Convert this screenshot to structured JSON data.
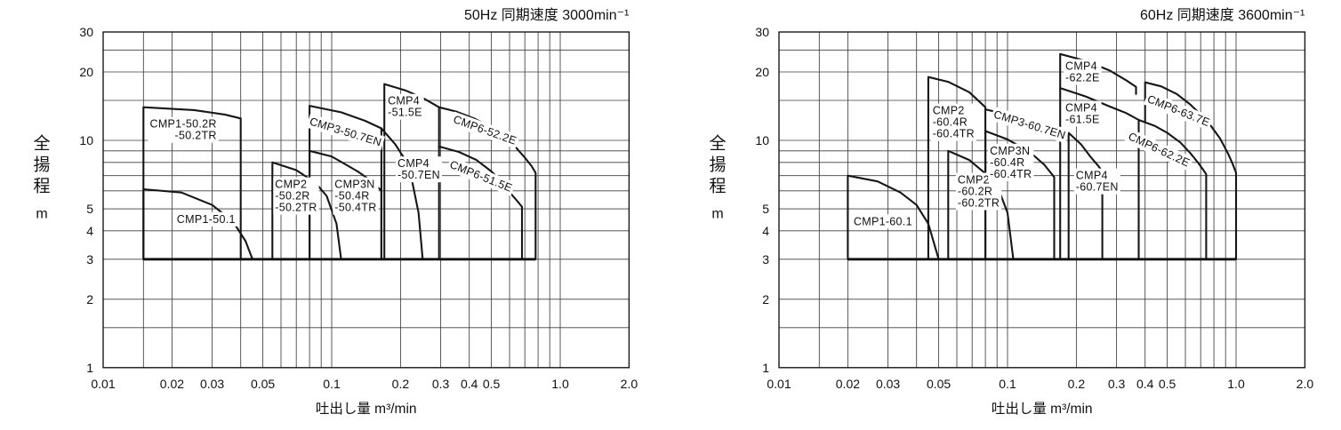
{
  "page": {
    "background": "#ffffff"
  },
  "colors": {
    "grid": "#3d3d3d",
    "border": "#1a1a1a",
    "region_line": "#161616",
    "bottom_line": "#111111",
    "text": "#111111",
    "label_bg": "#ffffff"
  },
  "chart_data": [
    {
      "type": "area",
      "id": "50hz",
      "title": "50Hz 同期速度 3000min⁻¹",
      "xlabel": "吐出し量  m³/min",
      "ylabel": "全揚程",
      "ylabel_unit": "m",
      "xlim": [
        0.01,
        2.0
      ],
      "ylim": [
        1,
        30
      ],
      "x_ticks": [
        {
          "v": 0.01,
          "t": "0.01"
        },
        {
          "v": 0.02,
          "t": "0.02"
        },
        {
          "v": 0.03,
          "t": "0.03"
        },
        {
          "v": 0.05,
          "t": "0.05"
        },
        {
          "v": 0.1,
          "t": "0.1"
        },
        {
          "v": 0.2,
          "t": "0.2"
        },
        {
          "v": 0.3,
          "t": "0.3"
        },
        {
          "v": 0.4,
          "t": "0.4"
        },
        {
          "v": 0.5,
          "t": "0.5"
        },
        {
          "v": 1.0,
          "t": "1.0"
        },
        {
          "v": 2.0,
          "t": "2.0"
        }
      ],
      "y_ticks": [
        {
          "v": 30,
          "t": "30"
        },
        {
          "v": 20,
          "t": "20"
        },
        {
          "v": 10,
          "t": "10"
        },
        {
          "v": 5,
          "t": "5"
        },
        {
          "v": 4,
          "t": "4"
        },
        {
          "v": 3,
          "t": "3"
        },
        {
          "v": 2,
          "t": "2"
        },
        {
          "v": 1,
          "t": "1"
        }
      ],
      "x_grid": [
        0.01,
        0.015,
        0.02,
        0.03,
        0.04,
        0.05,
        0.06,
        0.07,
        0.08,
        0.09,
        0.1,
        0.2,
        0.3,
        0.4,
        0.5,
        0.6,
        0.7,
        0.8,
        0.9,
        1.0,
        2.0
      ],
      "y_grid": [
        1,
        1.5,
        2,
        3,
        4,
        5,
        6,
        7,
        8,
        9,
        10,
        15,
        20,
        25,
        30
      ],
      "bottom_boundary": {
        "head_m": 3,
        "from": 0.015,
        "to": 0.78
      },
      "regions": [
        {
          "model": "CMP1-50.1",
          "points": [
            [
              0.015,
              3
            ],
            [
              0.015,
              6.1
            ],
            [
              0.022,
              5.9
            ],
            [
              0.03,
              5.2
            ],
            [
              0.037,
              4.4
            ],
            [
              0.042,
              3.6
            ],
            [
              0.045,
              3
            ]
          ]
        },
        {
          "model": "CMP1-50.2R/-50.2TR",
          "points": [
            [
              0.015,
              3
            ],
            [
              0.015,
              14
            ],
            [
              0.025,
              13.6
            ],
            [
              0.034,
              13.0
            ],
            [
              0.04,
              12.5
            ],
            [
              0.04,
              3
            ]
          ]
        },
        {
          "model": "CMP2-50.2R/-50.2TR",
          "points": [
            [
              0.055,
              3
            ],
            [
              0.055,
              8
            ],
            [
              0.07,
              7.4
            ],
            [
              0.085,
              6.5
            ],
            [
              0.095,
              5.7
            ],
            [
              0.105,
              4.3
            ],
            [
              0.11,
              3
            ]
          ]
        },
        {
          "model": "CMP3N-50.4R/-50.4TR",
          "points": [
            [
              0.08,
              3
            ],
            [
              0.08,
              9
            ],
            [
              0.1,
              8.5
            ],
            [
              0.13,
              7.3
            ],
            [
              0.15,
              6.6
            ],
            [
              0.165,
              6.0
            ],
            [
              0.165,
              3
            ]
          ]
        },
        {
          "model": "CMP3-50.7EN",
          "points": [
            [
              0.08,
              3
            ],
            [
              0.08,
              14.2
            ],
            [
              0.11,
              13.3
            ],
            [
              0.14,
              12.2
            ],
            [
              0.165,
              11.3
            ],
            [
              0.165,
              3
            ]
          ]
        },
        {
          "model": "CMP4-50.7EN",
          "points": [
            [
              0.165,
              11.3
            ],
            [
              0.19,
              9.6
            ],
            [
              0.21,
              8.2
            ],
            [
              0.225,
              6.6
            ],
            [
              0.24,
              4.8
            ],
            [
              0.25,
              3
            ]
          ]
        },
        {
          "model": "CMP4-51.5E",
          "points": [
            [
              0.17,
              3
            ],
            [
              0.17,
              17.7
            ],
            [
              0.21,
              16.6
            ],
            [
              0.25,
              15.4
            ],
            [
              0.295,
              14
            ],
            [
              0.295,
              3
            ]
          ]
        },
        {
          "model": "CMP6-52.2E",
          "points": [
            [
              0.295,
              14
            ],
            [
              0.35,
              13.4
            ],
            [
              0.42,
              12.5
            ],
            [
              0.5,
              11.4
            ],
            [
              0.57,
              10.4
            ],
            [
              0.64,
              9.3
            ],
            [
              0.7,
              8.4
            ],
            [
              0.75,
              7.7
            ],
            [
              0.78,
              7.2
            ],
            [
              0.78,
              3
            ]
          ]
        },
        {
          "model": "CMP6-51.5E",
          "points": [
            [
              0.295,
              9.4
            ],
            [
              0.36,
              8.9
            ],
            [
              0.43,
              8.2
            ],
            [
              0.5,
              7.3
            ],
            [
              0.56,
              6.5
            ],
            [
              0.62,
              5.7
            ],
            [
              0.66,
              5.3
            ],
            [
              0.68,
              5.1
            ],
            [
              0.68,
              3
            ]
          ]
        }
      ],
      "labels": [
        {
          "text": [
            "CMP1-50.2R",
            "-50.2TR"
          ],
          "x": 0.016,
          "y": 11.8,
          "dx": [
            0,
            28
          ],
          "rot": 0
        },
        {
          "text": [
            "CMP1-50.1"
          ],
          "x": 0.021,
          "y": 4.5,
          "rot": 0
        },
        {
          "text": [
            "CMP2",
            "-50.2R",
            "-50.2TR"
          ],
          "x": 0.0565,
          "y": 6.4,
          "rot": 0
        },
        {
          "text": [
            "CMP3N",
            "-50.4R",
            "-50.4TR"
          ],
          "x": 0.103,
          "y": 6.4,
          "rot": 0
        },
        {
          "text": [
            "CMP4",
            "-51.5E"
          ],
          "x": 0.176,
          "y": 14.9,
          "rot": 0
        },
        {
          "text": [
            "CMP4",
            "-50.7EN"
          ],
          "x": 0.194,
          "y": 7.9,
          "rot": 0
        },
        {
          "text": [
            "CMP3-50.7EN"
          ],
          "x": 0.115,
          "y": 10.9,
          "rot": 17,
          "anchor": "middle"
        },
        {
          "text": [
            "CMP6-52.2E"
          ],
          "x": 0.468,
          "y": 11.1,
          "rot": 20,
          "anchor": "middle"
        },
        {
          "text": [
            "CMP6-51.5E"
          ],
          "x": 0.45,
          "y": 6.95,
          "rot": 22,
          "anchor": "middle"
        }
      ]
    },
    {
      "type": "area",
      "id": "60hz",
      "title": "60Hz 同期速度 3600min⁻¹",
      "xlabel": "吐出し量  m³/min",
      "ylabel": "全揚程",
      "ylabel_unit": "m",
      "xlim": [
        0.01,
        2.0
      ],
      "ylim": [
        1,
        30
      ],
      "x_ticks": [
        {
          "v": 0.01,
          "t": "0.01"
        },
        {
          "v": 0.02,
          "t": "0.02"
        },
        {
          "v": 0.03,
          "t": "0.03"
        },
        {
          "v": 0.05,
          "t": "0.05"
        },
        {
          "v": 0.1,
          "t": "0.1"
        },
        {
          "v": 0.2,
          "t": "0.2"
        },
        {
          "v": 0.3,
          "t": "0.3"
        },
        {
          "v": 0.4,
          "t": "0.4"
        },
        {
          "v": 0.5,
          "t": "0.5"
        },
        {
          "v": 1.0,
          "t": "1.0"
        },
        {
          "v": 2.0,
          "t": "2.0"
        }
      ],
      "y_ticks": [
        {
          "v": 30,
          "t": "30"
        },
        {
          "v": 20,
          "t": "20"
        },
        {
          "v": 10,
          "t": "10"
        },
        {
          "v": 5,
          "t": "5"
        },
        {
          "v": 4,
          "t": "4"
        },
        {
          "v": 3,
          "t": "3"
        },
        {
          "v": 2,
          "t": "2"
        },
        {
          "v": 1,
          "t": "1"
        }
      ],
      "x_grid": [
        0.01,
        0.015,
        0.02,
        0.03,
        0.04,
        0.05,
        0.06,
        0.07,
        0.08,
        0.09,
        0.1,
        0.2,
        0.3,
        0.4,
        0.5,
        0.6,
        0.7,
        0.8,
        0.9,
        1.0,
        2.0
      ],
      "y_grid": [
        1,
        1.5,
        2,
        3,
        4,
        5,
        6,
        7,
        8,
        9,
        10,
        15,
        20,
        25,
        30
      ],
      "bottom_boundary": {
        "head_m": 3,
        "from": 0.02,
        "to": 1.0
      },
      "regions": [
        {
          "model": "CMP1-60.1",
          "points": [
            [
              0.02,
              3
            ],
            [
              0.02,
              7
            ],
            [
              0.027,
              6.6
            ],
            [
              0.034,
              5.9
            ],
            [
              0.04,
              5.2
            ],
            [
              0.045,
              4.3
            ],
            [
              0.05,
              3
            ]
          ]
        },
        {
          "model": "CMP2-60.2R/-60.2TR",
          "points": [
            [
              0.055,
              3
            ],
            [
              0.055,
              9
            ],
            [
              0.068,
              8.2
            ],
            [
              0.082,
              7.0
            ],
            [
              0.092,
              6.0
            ],
            [
              0.1,
              4.8
            ],
            [
              0.106,
              3
            ]
          ]
        },
        {
          "model": "CMP3N-60.4R/-60.4TR",
          "points": [
            [
              0.08,
              3
            ],
            [
              0.08,
              11
            ],
            [
              0.1,
              10.1
            ],
            [
              0.125,
              8.9
            ],
            [
              0.145,
              7.8
            ],
            [
              0.16,
              6.9
            ],
            [
              0.16,
              3
            ]
          ]
        },
        {
          "model": "CMP2-60.4R/-60.4TR",
          "points": [
            [
              0.045,
              3
            ],
            [
              0.045,
              19
            ],
            [
              0.055,
              18.1
            ],
            [
              0.068,
              16.3
            ],
            [
              0.08,
              14
            ],
            [
              0.08,
              3
            ]
          ]
        },
        {
          "model": "CMP3-60.7EN",
          "points": [
            [
              0.08,
              13.7
            ],
            [
              0.11,
              12.7
            ],
            [
              0.15,
              11.6
            ],
            [
              0.185,
              10.8
            ],
            [
              0.185,
              3
            ]
          ]
        },
        {
          "model": "CMP4-60.7EN",
          "points": [
            [
              0.185,
              10.8
            ],
            [
              0.21,
              9.6
            ],
            [
              0.23,
              8.5
            ],
            [
              0.25,
              7.7
            ],
            [
              0.26,
              7.3
            ],
            [
              0.26,
              3
            ]
          ]
        },
        {
          "model": "CMP4-62.2E",
          "points": [
            [
              0.17,
              17
            ],
            [
              0.17,
              24
            ],
            [
              0.22,
              22.4
            ],
            [
              0.28,
              20.3
            ],
            [
              0.33,
              18.4
            ],
            [
              0.365,
              17.2
            ],
            [
              0.365,
              16
            ]
          ]
        },
        {
          "model": "CMP4-61.5E",
          "points": [
            [
              0.17,
              3
            ],
            [
              0.17,
              17
            ],
            [
              0.22,
              15.6
            ],
            [
              0.28,
              14.1
            ],
            [
              0.33,
              13.2
            ],
            [
              0.375,
              12.3
            ],
            [
              0.375,
              3
            ]
          ]
        },
        {
          "model": "CMP6-63.7E",
          "points": [
            [
              0.4,
              12
            ],
            [
              0.4,
              18
            ],
            [
              0.47,
              17.3
            ],
            [
              0.55,
              16
            ],
            [
              0.63,
              14.4
            ],
            [
              0.7,
              13
            ],
            [
              0.78,
              11.5
            ],
            [
              0.85,
              10.2
            ],
            [
              0.92,
              8.8
            ],
            [
              0.97,
              7.8
            ],
            [
              1.0,
              7.2
            ],
            [
              1.0,
              3
            ]
          ]
        },
        {
          "model": "CMP6-62.2E",
          "points": [
            [
              0.375,
              12.3
            ],
            [
              0.44,
              11.6
            ],
            [
              0.5,
              10.8
            ],
            [
              0.57,
              9.8
            ],
            [
              0.63,
              8.8
            ],
            [
              0.68,
              8.0
            ],
            [
              0.72,
              7.4
            ],
            [
              0.74,
              7.1
            ],
            [
              0.74,
              3
            ]
          ]
        }
      ],
      "labels": [
        {
          "text": [
            "CMP2",
            "-60.4R",
            "-60.4TR"
          ],
          "x": 0.047,
          "y": 13.5,
          "rot": 0
        },
        {
          "text": [
            "CMP1-60.1"
          ],
          "x": 0.0212,
          "y": 4.4,
          "rot": 0
        },
        {
          "text": [
            "CMP2",
            "-60.2R",
            "-60.2TR"
          ],
          "x": 0.0605,
          "y": 6.7,
          "rot": 0
        },
        {
          "text": [
            "CMP3N",
            "-60.4R",
            "-60.4TR"
          ],
          "x": 0.0837,
          "y": 9.0,
          "rot": 0
        },
        {
          "text": [
            "CMP3-60.7EN"
          ],
          "x": 0.125,
          "y": 11.7,
          "rot": 17,
          "anchor": "middle"
        },
        {
          "text": [
            "CMP4",
            "-62.2E"
          ],
          "x": 0.179,
          "y": 21.2,
          "rot": 0
        },
        {
          "text": [
            "CMP4",
            "-61.5E"
          ],
          "x": 0.179,
          "y": 13.9,
          "rot": 0
        },
        {
          "text": [
            "CMP4",
            "-60.7EN"
          ],
          "x": 0.199,
          "y": 7.0,
          "rot": 0
        },
        {
          "text": [
            "CMP6-63.7E"
          ],
          "x": 0.56,
          "y": 13.5,
          "rot": 22,
          "anchor": "middle"
        },
        {
          "text": [
            "CMP6-62.2E"
          ],
          "x": 0.46,
          "y": 9.1,
          "rot": 25,
          "anchor": "middle"
        }
      ]
    }
  ]
}
